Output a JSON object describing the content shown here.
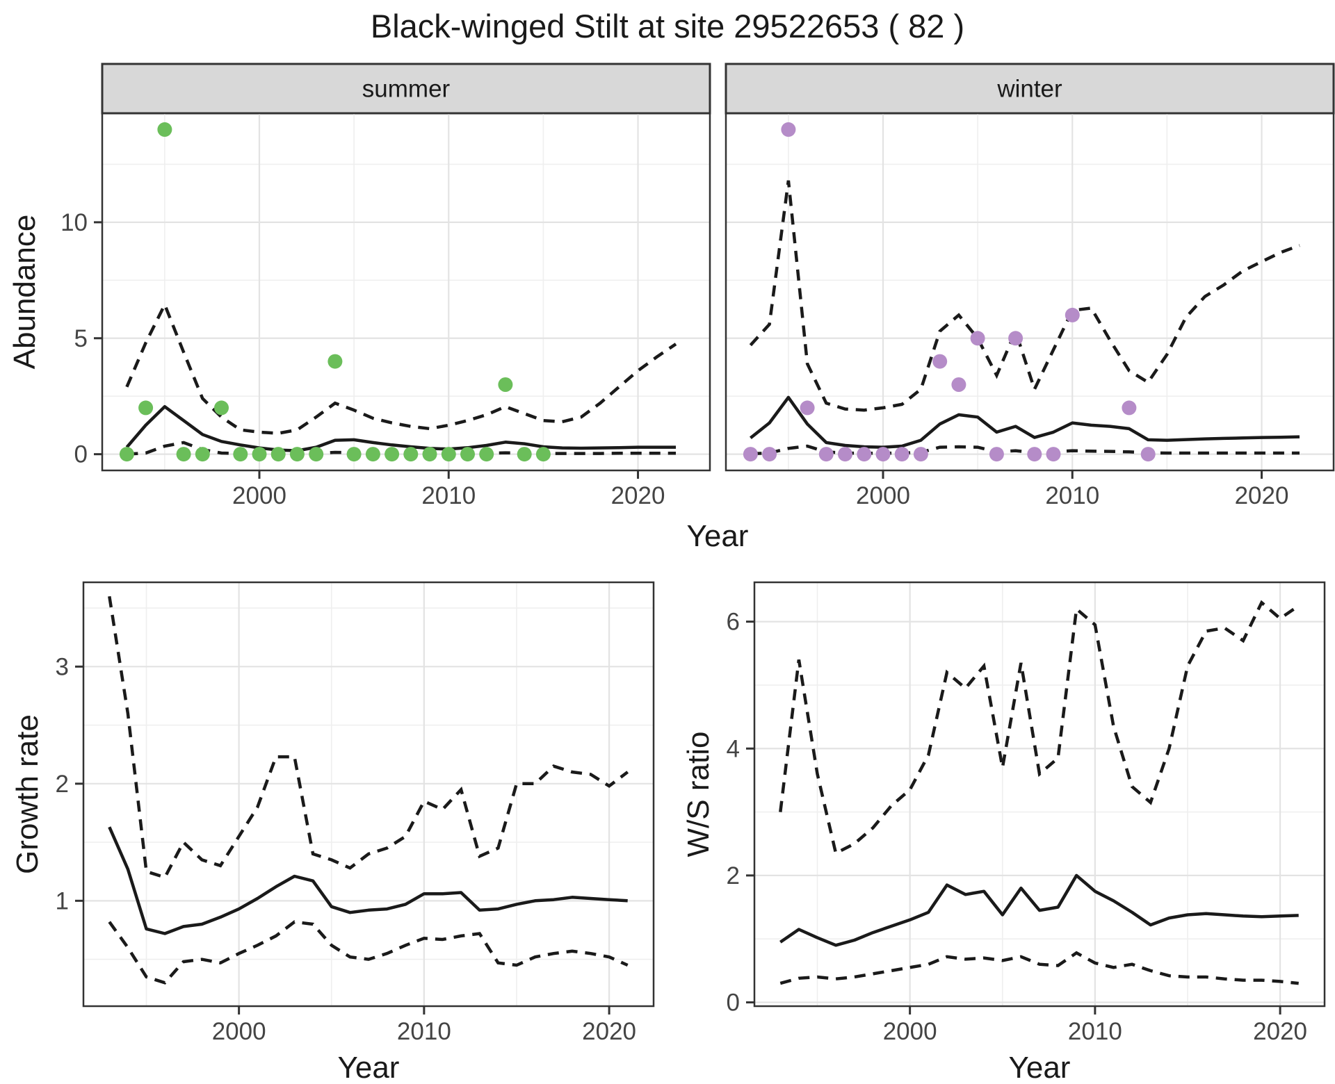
{
  "title": "Black-winged Stilt at site 29522653 ( 82 )",
  "axis_titles": {
    "abundance": "Abundance",
    "growth": "Growth rate",
    "ws": "W/S ratio",
    "year": "Year"
  },
  "facets": {
    "summer": "summer",
    "winter": "winter"
  },
  "colors": {
    "summer_point": "#6bbe5a",
    "winter_point": "#b58cc8",
    "line": "#1a1a1a",
    "strip_fill": "#d8d8d8",
    "strip_border": "#333333",
    "panel_border": "#333333",
    "grid_major": "#e3e3e3",
    "grid_minor": "#efefef",
    "tick_mark": "#333333",
    "axis_text": "#444444"
  },
  "style": {
    "solid_width": 4.5,
    "dash_width": 4.5,
    "dash_pattern": "16 11",
    "point_radius": 10.5,
    "grid_major_width": 2.2,
    "grid_minor_width": 1.6,
    "border_width": 2.5,
    "tick_len": 12
  },
  "chart_data": [
    {
      "id": "abundance-summer",
      "type": "scatter+line",
      "facet": "summer",
      "ylabel": "Abundance",
      "xlabel": "Year",
      "legend": "none",
      "grid": true,
      "point_color_key": "summer_point",
      "xlim": [
        1991.7,
        2023.8
      ],
      "ylim": [
        -0.7,
        14.7
      ],
      "xticks": [
        2000,
        2010,
        2020
      ],
      "xminor": [
        1995,
        2005,
        2015
      ],
      "yticks": [
        0,
        5,
        10
      ],
      "yminor": [
        2.5,
        7.5,
        12.5
      ],
      "show_y_labels": true,
      "years": [
        1993,
        1994,
        1995,
        1996,
        1997,
        1998,
        1999,
        2000,
        2001,
        2002,
        2003,
        2004,
        2005,
        2006,
        2007,
        2008,
        2009,
        2010,
        2011,
        2012,
        2013,
        2014,
        2015,
        2016,
        2017,
        2018,
        2019,
        2020,
        2021,
        2022
      ],
      "fit": [
        0.3,
        1.25,
        2.05,
        1.45,
        0.85,
        0.55,
        0.4,
        0.27,
        0.18,
        0.15,
        0.3,
        0.6,
        0.62,
        0.5,
        0.4,
        0.32,
        0.25,
        0.22,
        0.28,
        0.38,
        0.52,
        0.45,
        0.32,
        0.27,
        0.26,
        0.27,
        0.28,
        0.3,
        0.3,
        0.3
      ],
      "upper_ci": [
        2.9,
        4.8,
        6.45,
        4.4,
        2.4,
        1.6,
        1.05,
        0.95,
        0.9,
        1.05,
        1.6,
        2.2,
        1.9,
        1.55,
        1.35,
        1.2,
        1.1,
        1.25,
        1.45,
        1.7,
        2.05,
        1.75,
        1.45,
        1.4,
        1.6,
        2.2,
        2.9,
        3.6,
        4.2,
        4.75
      ],
      "lower_ci": [
        0.0,
        0.05,
        0.35,
        0.5,
        0.2,
        0.05,
        0.03,
        0.02,
        0.02,
        0.02,
        0.03,
        0.08,
        0.07,
        0.04,
        0.03,
        0.02,
        0.02,
        0.02,
        0.03,
        0.04,
        0.06,
        0.05,
        0.03,
        0.03,
        0.03,
        0.03,
        0.04,
        0.04,
        0.04,
        0.04
      ],
      "obs_x": [
        1993,
        1994,
        1995,
        1996,
        1997,
        1998,
        1999,
        2000,
        2001,
        2002,
        2003,
        2004,
        2005,
        2006,
        2007,
        2008,
        2009,
        2010,
        2011,
        2012,
        2013,
        2014,
        2015
      ],
      "obs_y": [
        0,
        2,
        14,
        0,
        0,
        2,
        0,
        0,
        0,
        0,
        0,
        4,
        0,
        0,
        0,
        0,
        0,
        0,
        0,
        0,
        3,
        0,
        0
      ]
    },
    {
      "id": "abundance-winter",
      "type": "scatter+line",
      "facet": "winter",
      "ylabel": "Abundance",
      "xlabel": "Year",
      "legend": "none",
      "grid": true,
      "point_color_key": "winter_point",
      "xlim": [
        1991.7,
        2023.8
      ],
      "ylim": [
        -0.7,
        14.7
      ],
      "xticks": [
        2000,
        2010,
        2020
      ],
      "xminor": [
        1995,
        2005,
        2015
      ],
      "yticks": [
        0,
        5,
        10
      ],
      "yminor": [
        2.5,
        7.5,
        12.5
      ],
      "show_y_labels": false,
      "years": [
        1993,
        1994,
        1995,
        1996,
        1997,
        1998,
        1999,
        2000,
        2001,
        2002,
        2003,
        2004,
        2005,
        2006,
        2007,
        2008,
        2009,
        2010,
        2011,
        2012,
        2013,
        2014,
        2015,
        2016,
        2017,
        2018,
        2019,
        2020,
        2021,
        2022
      ],
      "fit": [
        0.7,
        1.35,
        2.45,
        1.3,
        0.5,
        0.38,
        0.32,
        0.3,
        0.35,
        0.6,
        1.3,
        1.7,
        1.6,
        0.95,
        1.2,
        0.72,
        0.95,
        1.35,
        1.25,
        1.2,
        1.1,
        0.62,
        0.6,
        0.63,
        0.66,
        0.68,
        0.7,
        0.72,
        0.73,
        0.75
      ],
      "upper_ci": [
        4.7,
        5.6,
        11.8,
        3.9,
        2.2,
        1.95,
        1.9,
        2.0,
        2.15,
        2.8,
        5.3,
        6.0,
        5.0,
        3.4,
        5.3,
        2.8,
        4.5,
        6.2,
        6.3,
        4.9,
        3.6,
        3.1,
        4.3,
        5.9,
        6.8,
        7.3,
        7.9,
        8.3,
        8.7,
        9.0
      ],
      "lower_ci": [
        0.02,
        0.05,
        0.25,
        0.35,
        0.1,
        0.05,
        0.04,
        0.04,
        0.05,
        0.08,
        0.3,
        0.32,
        0.3,
        0.1,
        0.15,
        0.07,
        0.1,
        0.15,
        0.13,
        0.12,
        0.1,
        0.06,
        0.05,
        0.05,
        0.05,
        0.05,
        0.05,
        0.05,
        0.05,
        0.05
      ],
      "obs_x": [
        1993,
        1994,
        1995,
        1996,
        1997,
        1998,
        1999,
        2000,
        2001,
        2002,
        2003,
        2004,
        2005,
        2006,
        2007,
        2008,
        2009,
        2010,
        2013,
        2014
      ],
      "obs_y": [
        0,
        0,
        14,
        2,
        0,
        0,
        0,
        0,
        0,
        0,
        4,
        3,
        5,
        0,
        5,
        0,
        0,
        6,
        2,
        0
      ]
    },
    {
      "id": "growth-rate",
      "type": "line",
      "facet": null,
      "ylabel": "Growth rate",
      "xlabel": "Year",
      "legend": "none",
      "grid": true,
      "xlim": [
        1991.6,
        2022.4
      ],
      "ylim": [
        0.1,
        3.72
      ],
      "xticks": [
        2000,
        2010,
        2020
      ],
      "xminor": [
        1995,
        2005,
        2015
      ],
      "yticks": [
        1,
        2,
        3
      ],
      "yminor": [
        0.5,
        1.5,
        2.5,
        3.5
      ],
      "show_y_labels": true,
      "years": [
        1993,
        1994,
        1995,
        1996,
        1997,
        1998,
        1999,
        2000,
        2001,
        2002,
        2003,
        2004,
        2005,
        2006,
        2007,
        2008,
        2009,
        2010,
        2011,
        2012,
        2013,
        2014,
        2015,
        2016,
        2017,
        2018,
        2019,
        2020,
        2021
      ],
      "fit": [
        1.63,
        1.27,
        0.76,
        0.72,
        0.78,
        0.8,
        0.86,
        0.93,
        1.02,
        1.12,
        1.21,
        1.17,
        0.95,
        0.9,
        0.92,
        0.93,
        0.97,
        1.06,
        1.06,
        1.07,
        0.92,
        0.93,
        0.97,
        1.0,
        1.01,
        1.03,
        1.02,
        1.01,
        1.0
      ],
      "upper_ci": [
        3.6,
        2.6,
        1.25,
        1.2,
        1.5,
        1.35,
        1.3,
        1.55,
        1.8,
        2.23,
        2.23,
        1.4,
        1.35,
        1.28,
        1.4,
        1.45,
        1.55,
        1.85,
        1.78,
        1.95,
        1.38,
        1.45,
        2.0,
        2.0,
        2.15,
        2.1,
        2.08,
        1.98,
        2.1
      ],
      "lower_ci": [
        0.82,
        0.6,
        0.35,
        0.3,
        0.48,
        0.5,
        0.47,
        0.55,
        0.62,
        0.7,
        0.82,
        0.8,
        0.62,
        0.52,
        0.5,
        0.55,
        0.62,
        0.68,
        0.67,
        0.7,
        0.72,
        0.47,
        0.45,
        0.52,
        0.55,
        0.57,
        0.55,
        0.52,
        0.45
      ]
    },
    {
      "id": "ws-ratio",
      "type": "line",
      "facet": null,
      "ylabel": "W/S ratio",
      "xlabel": "Year",
      "legend": "none",
      "grid": true,
      "xlim": [
        1991.6,
        2022.4
      ],
      "ylim": [
        -0.06,
        6.62
      ],
      "xticks": [
        2000,
        2010,
        2020
      ],
      "xminor": [
        1995,
        2005,
        2015
      ],
      "yticks": [
        0,
        2,
        4,
        6
      ],
      "yminor": [
        1,
        3,
        5
      ],
      "show_y_labels": true,
      "years": [
        1993,
        1994,
        1995,
        1996,
        1997,
        1998,
        1999,
        2000,
        2001,
        2002,
        2003,
        2004,
        2005,
        2006,
        2007,
        2008,
        2009,
        2010,
        2011,
        2012,
        2013,
        2014,
        2015,
        2016,
        2017,
        2018,
        2019,
        2020,
        2021
      ],
      "fit": [
        0.95,
        1.15,
        1.02,
        0.9,
        0.98,
        1.1,
        1.2,
        1.3,
        1.42,
        1.85,
        1.7,
        1.75,
        1.38,
        1.8,
        1.45,
        1.5,
        2.0,
        1.75,
        1.6,
        1.42,
        1.22,
        1.33,
        1.38,
        1.4,
        1.38,
        1.36,
        1.35,
        1.36,
        1.37
      ],
      "upper_ci": [
        3.0,
        5.4,
        3.6,
        2.35,
        2.5,
        2.75,
        3.1,
        3.35,
        3.9,
        5.2,
        4.95,
        5.3,
        3.7,
        5.35,
        3.6,
        3.85,
        6.2,
        5.95,
        4.35,
        3.4,
        3.15,
        4.0,
        5.3,
        5.85,
        5.9,
        5.7,
        6.3,
        6.05,
        6.25
      ],
      "lower_ci": [
        0.3,
        0.38,
        0.4,
        0.37,
        0.4,
        0.45,
        0.5,
        0.55,
        0.6,
        0.72,
        0.68,
        0.7,
        0.66,
        0.72,
        0.6,
        0.58,
        0.78,
        0.62,
        0.55,
        0.6,
        0.5,
        0.42,
        0.4,
        0.4,
        0.37,
        0.35,
        0.35,
        0.33,
        0.3
      ]
    }
  ]
}
